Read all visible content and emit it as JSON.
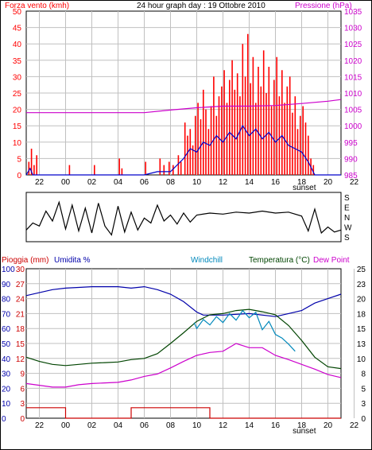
{
  "colors": {
    "wind_gust": "#ff0000",
    "wind_avg": "#0000cc",
    "pressure": "#cc00cc",
    "rain": "#cc0000",
    "humidity": "#0000aa",
    "windchill": "#0088bb",
    "temperature": "#004400",
    "dewpoint": "#cc00cc",
    "grid": "#c0c0c0"
  },
  "chart_data": [
    {
      "type": "line",
      "title": "24 hour graph day : 19 Ottobre 2010",
      "ylabel_left": "Forza vento (kmh)",
      "ylabel_right": "Pressione (hPa)",
      "x_ticks": [
        "22",
        "00",
        "02",
        "04",
        "06",
        "08",
        "10",
        "12",
        "14",
        "16",
        "18",
        "20",
        "22"
      ],
      "x_annotation": "sunset",
      "ylim_left": [
        0,
        50
      ],
      "yticks_left": [
        0,
        5,
        10,
        15,
        20,
        25,
        30,
        35,
        40,
        45,
        50
      ],
      "ylim_right": [
        985,
        1035
      ],
      "yticks_right": [
        985,
        990,
        995,
        1000,
        1005,
        1010,
        1015,
        1020,
        1025,
        1030,
        1035
      ],
      "x_hours": [
        -3,
        21
      ],
      "series": [
        {
          "key": "gust",
          "axis": "left",
          "style": "bars",
          "points": [
            [
              -2.8,
              4
            ],
            [
              -2.6,
              8
            ],
            [
              -2.4,
              3
            ],
            [
              -2.2,
              6
            ],
            [
              0.3,
              3
            ],
            [
              2.2,
              3
            ],
            [
              4.1,
              5
            ],
            [
              4.3,
              2
            ],
            [
              6.1,
              4
            ],
            [
              7.2,
              5
            ],
            [
              7.5,
              3
            ],
            [
              7.9,
              4
            ],
            [
              8.2,
              3
            ],
            [
              8.6,
              6
            ],
            [
              8.8,
              4
            ],
            [
              9.1,
              16
            ],
            [
              9.3,
              12
            ],
            [
              9.5,
              14
            ],
            [
              9.7,
              9
            ],
            [
              9.9,
              18
            ],
            [
              10.1,
              22
            ],
            [
              10.3,
              17
            ],
            [
              10.5,
              26
            ],
            [
              10.7,
              20
            ],
            [
              10.9,
              14
            ],
            [
              11.1,
              21
            ],
            [
              11.3,
              30
            ],
            [
              11.5,
              18
            ],
            [
              11.7,
              24
            ],
            [
              11.9,
              27
            ],
            [
              12.1,
              32
            ],
            [
              12.3,
              22
            ],
            [
              12.5,
              29
            ],
            [
              12.7,
              35
            ],
            [
              12.9,
              26
            ],
            [
              13.1,
              31
            ],
            [
              13.3,
              24
            ],
            [
              13.5,
              40
            ],
            [
              13.7,
              30
            ],
            [
              13.9,
              43
            ],
            [
              14.1,
              28
            ],
            [
              14.3,
              36
            ],
            [
              14.5,
              22
            ],
            [
              14.7,
              33
            ],
            [
              14.9,
              27
            ],
            [
              15.1,
              38
            ],
            [
              15.3,
              25
            ],
            [
              15.5,
              33
            ],
            [
              15.7,
              21
            ],
            [
              15.9,
              29
            ],
            [
              16.1,
              36
            ],
            [
              16.3,
              24
            ],
            [
              16.5,
              32
            ],
            [
              16.7,
              22
            ],
            [
              16.9,
              27
            ],
            [
              17.1,
              30
            ],
            [
              17.3,
              19
            ],
            [
              17.5,
              24
            ],
            [
              17.7,
              14
            ],
            [
              17.9,
              18
            ],
            [
              18.1,
              21
            ],
            [
              18.3,
              16
            ],
            [
              18.5,
              12
            ],
            [
              18.7,
              5
            ],
            [
              18.9,
              3
            ],
            [
              19.0,
              0
            ]
          ]
        },
        {
          "key": "avg",
          "axis": "left",
          "style": "line",
          "points": [
            [
              -3,
              0
            ],
            [
              -2.7,
              2
            ],
            [
              -2.5,
              0
            ],
            [
              6.0,
              0
            ],
            [
              7.0,
              1
            ],
            [
              8.0,
              1
            ],
            [
              9.0,
              5
            ],
            [
              9.5,
              8
            ],
            [
              10.0,
              7
            ],
            [
              10.5,
              10
            ],
            [
              11.0,
              9
            ],
            [
              11.5,
              12
            ],
            [
              12.0,
              10
            ],
            [
              12.5,
              13
            ],
            [
              13.0,
              11
            ],
            [
              13.5,
              15
            ],
            [
              14.0,
              12
            ],
            [
              14.5,
              14
            ],
            [
              15.0,
              11
            ],
            [
              15.5,
              13
            ],
            [
              16.0,
              10
            ],
            [
              16.5,
              12
            ],
            [
              17.0,
              9
            ],
            [
              17.5,
              8
            ],
            [
              18.0,
              7
            ],
            [
              18.5,
              4
            ],
            [
              19.0,
              0
            ],
            [
              21,
              0
            ]
          ]
        },
        {
          "key": "pressure",
          "axis": "right",
          "style": "line",
          "points": [
            [
              -3,
              1004
            ],
            [
              0,
              1004
            ],
            [
              3,
              1004
            ],
            [
              6,
              1004
            ],
            [
              8,
              1004.8
            ],
            [
              10,
              1005.5
            ],
            [
              12,
              1006
            ],
            [
              14,
              1006
            ],
            [
              16,
              1006.2
            ],
            [
              18,
              1006.8
            ],
            [
              20,
              1007.5
            ],
            [
              21,
              1008
            ]
          ]
        }
      ]
    },
    {
      "type": "line",
      "ylabel_right_letters": [
        "S",
        "E",
        "N",
        "W",
        "S"
      ],
      "x_hours": [
        -3,
        21
      ],
      "series": [
        {
          "key": "direction",
          "points": [
            [
              -3,
              3.3
            ],
            [
              -2.5,
              2.6
            ],
            [
              -2,
              2.9
            ],
            [
              -1.5,
              1.4
            ],
            [
              -1,
              2.4
            ],
            [
              -0.5,
              0.5
            ],
            [
              0,
              3.2
            ],
            [
              0.5,
              0.8
            ],
            [
              1,
              3.4
            ],
            [
              1.5,
              1.1
            ],
            [
              2,
              3.6
            ],
            [
              2.5,
              0.6
            ],
            [
              3,
              2.9
            ],
            [
              3.5,
              3.8
            ],
            [
              4,
              0.9
            ],
            [
              4.5,
              3.5
            ],
            [
              5,
              1.5
            ],
            [
              5.5,
              3.3
            ],
            [
              6,
              2.1
            ],
            [
              6.5,
              2.6
            ],
            [
              7,
              0.8
            ],
            [
              7.5,
              2.4
            ],
            [
              8,
              1.8
            ],
            [
              8.5,
              2.7
            ],
            [
              9,
              1.6
            ],
            [
              9.5,
              2.5
            ],
            [
              10,
              1.8
            ],
            [
              11,
              1.6
            ],
            [
              12,
              1.7
            ],
            [
              13,
              1.5
            ],
            [
              14,
              1.6
            ],
            [
              15,
              1.4
            ],
            [
              16,
              1.6
            ],
            [
              17,
              1.5
            ],
            [
              18,
              1.9
            ],
            [
              18.5,
              3.4
            ],
            [
              19,
              1.2
            ],
            [
              19.5,
              3.6
            ],
            [
              20,
              3.0
            ],
            [
              20.5,
              3.5
            ],
            [
              21,
              3.3
            ]
          ]
        }
      ]
    },
    {
      "type": "line",
      "labels": {
        "rain": "Pioggia (mm)",
        "humidity": "Umidita %",
        "windchill": "Windchill",
        "temperature": "Temperatura (°C)",
        "dewpoint": "Dew Point"
      },
      "x_ticks": [
        "22",
        "00",
        "02",
        "04",
        "06",
        "08",
        "10",
        "12",
        "14",
        "16",
        "18",
        "20",
        "22"
      ],
      "x_annotation": "sunset",
      "ylim_left_outer": [
        0,
        100
      ],
      "yticks_left_outer": [
        0,
        10,
        20,
        30,
        40,
        50,
        60,
        70,
        80,
        90,
        100
      ],
      "ylim_left_inner": [
        0,
        30
      ],
      "yticks_left_inner": [
        0,
        3,
        6,
        9,
        12,
        15,
        18,
        21,
        24,
        27,
        30
      ],
      "ylim_right": [
        0,
        25
      ],
      "yticks_right": [
        0,
        2.5,
        5,
        7.5,
        10,
        12.5,
        15,
        17.5,
        20,
        22.5,
        25
      ],
      "yticklabels_right": [
        "0",
        "3",
        "5",
        "8",
        "10",
        "13",
        "15",
        "18",
        "20",
        "23",
        "25"
      ],
      "x_hours": [
        -3,
        21
      ],
      "series": [
        {
          "key": "humidity",
          "axis": "pct",
          "points": [
            [
              -3,
              82
            ],
            [
              -1,
              86
            ],
            [
              0,
              87
            ],
            [
              2,
              88
            ],
            [
              4,
              88
            ],
            [
              5,
              87
            ],
            [
              6,
              88
            ],
            [
              7,
              86
            ],
            [
              8,
              83
            ],
            [
              9,
              78
            ],
            [
              10,
              71
            ],
            [
              10.5,
              69
            ],
            [
              12,
              69
            ],
            [
              14,
              70
            ],
            [
              16,
              68
            ],
            [
              17,
              70
            ],
            [
              18,
              72
            ],
            [
              19,
              77
            ],
            [
              20,
              80
            ],
            [
              21,
              83
            ]
          ]
        },
        {
          "key": "temperature",
          "axis": "temp",
          "points": [
            [
              -3,
              10.2
            ],
            [
              -2,
              9.5
            ],
            [
              -1,
              9.0
            ],
            [
              0,
              8.8
            ],
            [
              1,
              9.0
            ],
            [
              2,
              9.2
            ],
            [
              3,
              9.3
            ],
            [
              4,
              9.4
            ],
            [
              5,
              9.8
            ],
            [
              6,
              10.0
            ],
            [
              7,
              10.8
            ],
            [
              8,
              12.5
            ],
            [
              9,
              14.3
            ],
            [
              10,
              16.2
            ],
            [
              11,
              17.3
            ],
            [
              12,
              17.5
            ],
            [
              13,
              18.0
            ],
            [
              14,
              18.2
            ],
            [
              15,
              17.8
            ],
            [
              16,
              17.3
            ],
            [
              17,
              15.5
            ],
            [
              18,
              13.0
            ],
            [
              19,
              10.2
            ],
            [
              20,
              8.6
            ],
            [
              21,
              8.3
            ]
          ]
        },
        {
          "key": "windchill",
          "axis": "temp",
          "points": [
            [
              9.8,
              16.0
            ],
            [
              10,
              15.0
            ],
            [
              10.5,
              16.5
            ],
            [
              11,
              15.6
            ],
            [
              11.5,
              17.0
            ],
            [
              12,
              16.0
            ],
            [
              12.5,
              17.5
            ],
            [
              13,
              16.4
            ],
            [
              13.5,
              18.0
            ],
            [
              14,
              16.8
            ],
            [
              14.5,
              17.7
            ],
            [
              15,
              14.8
            ],
            [
              15.5,
              16.2
            ],
            [
              16,
              14.0
            ],
            [
              16.5,
              13.4
            ],
            [
              17,
              12.4
            ],
            [
              17.5,
              11.2
            ]
          ]
        },
        {
          "key": "dewpoint",
          "axis": "temp",
          "points": [
            [
              -3,
              5.8
            ],
            [
              -2,
              5.5
            ],
            [
              -1,
              5.2
            ],
            [
              0,
              5.2
            ],
            [
              1,
              5.6
            ],
            [
              2,
              5.8
            ],
            [
              3,
              5.9
            ],
            [
              4,
              6.0
            ],
            [
              5,
              6.4
            ],
            [
              6,
              7.0
            ],
            [
              7,
              7.4
            ],
            [
              8,
              8.4
            ],
            [
              9,
              9.5
            ],
            [
              10,
              10.5
            ],
            [
              11,
              11.0
            ],
            [
              12,
              11.2
            ],
            [
              13,
              12.5
            ],
            [
              14,
              11.8
            ],
            [
              15,
              11.8
            ],
            [
              16,
              10.5
            ],
            [
              17,
              9.8
            ],
            [
              18,
              9.0
            ],
            [
              19,
              8.2
            ],
            [
              20,
              7.3
            ],
            [
              21,
              6.8
            ]
          ]
        },
        {
          "key": "rain",
          "axis": "pct",
          "style": "step",
          "points": [
            [
              -3,
              7
            ],
            [
              0,
              7
            ],
            [
              0,
              0
            ],
            [
              5,
              0
            ],
            [
              5,
              7
            ],
            [
              11,
              7
            ],
            [
              11,
              0
            ],
            [
              21,
              0
            ]
          ]
        }
      ]
    }
  ]
}
